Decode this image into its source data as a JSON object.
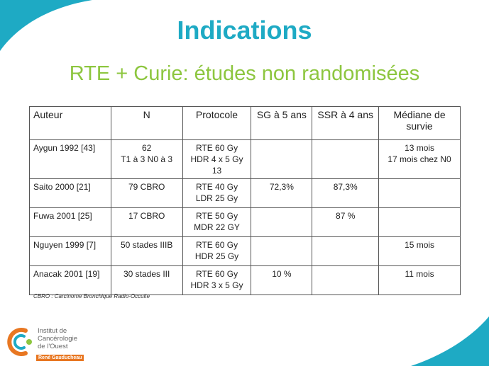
{
  "slide": {
    "title": "Indications",
    "subtitle": "RTE + Curie: études non randomisées",
    "accent_color": "#1eaac4",
    "subtitle_color": "#8dc63f"
  },
  "table": {
    "headers": [
      "Auteur",
      "N",
      "Protocole",
      "SG à 5 ans",
      "SSR à 4 ans",
      "Médiane de survie"
    ],
    "rows": [
      {
        "auteur": "Aygun 1992 [43]",
        "n": [
          "62",
          "T1 à 3 N0 à 3"
        ],
        "protocole": [
          "RTE 60 Gy",
          "HDR 4 x 5 Gy 13"
        ],
        "sg": "",
        "ssr": "",
        "mediane": [
          "13 mois",
          "17 mois chez N0"
        ]
      },
      {
        "auteur": "Saito 2000 [21]",
        "n": [
          "79 CBRO"
        ],
        "protocole": [
          "RTE 40 Gy",
          "LDR 25 Gy"
        ],
        "sg": "72,3%",
        "ssr": "87,3%",
        "mediane": []
      },
      {
        "auteur": "Fuwa 2001 [25]",
        "n": [
          "17 CBRO"
        ],
        "protocole": [
          "RTE 50 Gy",
          "MDR 22 GY"
        ],
        "sg": "",
        "ssr": "87 %",
        "mediane": []
      },
      {
        "auteur": "Nguyen 1999 [7]",
        "n": [
          "50 stades IIIB"
        ],
        "protocole": [
          "RTE 60 Gy",
          "HDR 25 Gy"
        ],
        "sg": "",
        "ssr": "",
        "mediane": [
          "15 mois"
        ]
      },
      {
        "auteur": "Anacak 2001 [19]",
        "n": [
          "30 stades III"
        ],
        "protocole": [
          "RTE 60 Gy",
          "HDR 3 x 5 Gy"
        ],
        "sg": "10 %",
        "ssr": "",
        "mediane": [
          "11 mois"
        ]
      }
    ]
  },
  "footnote": "CBRO : Carcinome Bronchique Radio-Occulte",
  "logo": {
    "lines": [
      "Institut de",
      "Cancérologie",
      "de l'Ouest"
    ],
    "sub": "René Gauducheau",
    "colors": {
      "orange": "#e87722",
      "teal": "#1eaac4",
      "green": "#8dc63f"
    }
  }
}
